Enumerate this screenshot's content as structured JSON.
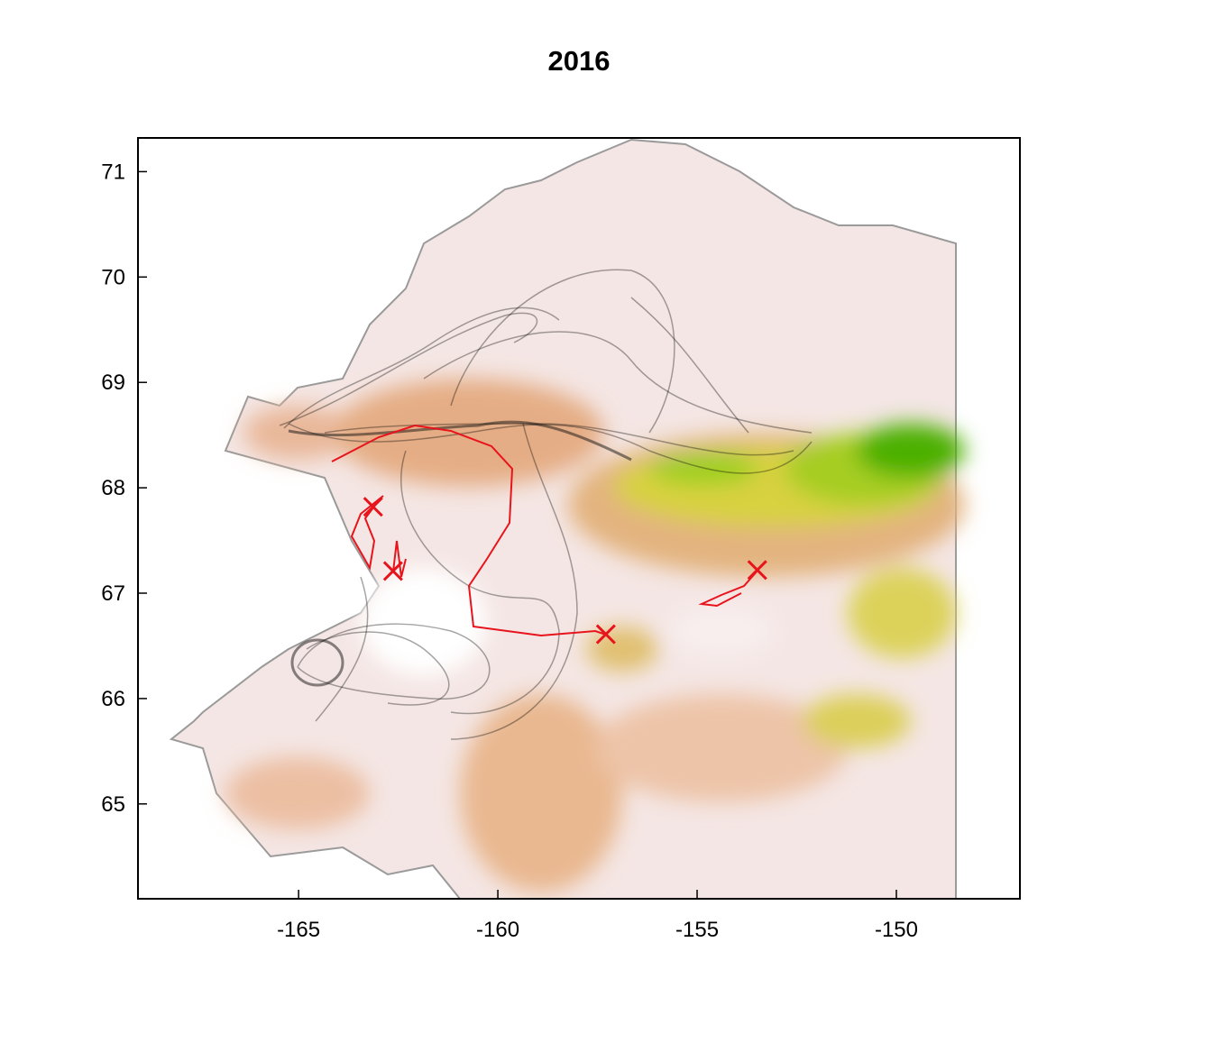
{
  "chart_data": {
    "type": "scatter",
    "title": "2016",
    "x": [
      -163.13,
      -162.63,
      -157.29,
      -153.49
    ],
    "series": [
      {
        "values": [
          67.82,
          67.21,
          66.61,
          67.22
        ],
        "color": "#e8141c",
        "marker": "x"
      }
    ],
    "xlim": [
      -169.03,
      -146.9
    ],
    "ylim": [
      64.1,
      71.32
    ],
    "xticks": [
      -165,
      -160,
      -155,
      -150
    ],
    "yticks": [
      65,
      66,
      67,
      68,
      69,
      70,
      71
    ],
    "grid": false
  }
}
